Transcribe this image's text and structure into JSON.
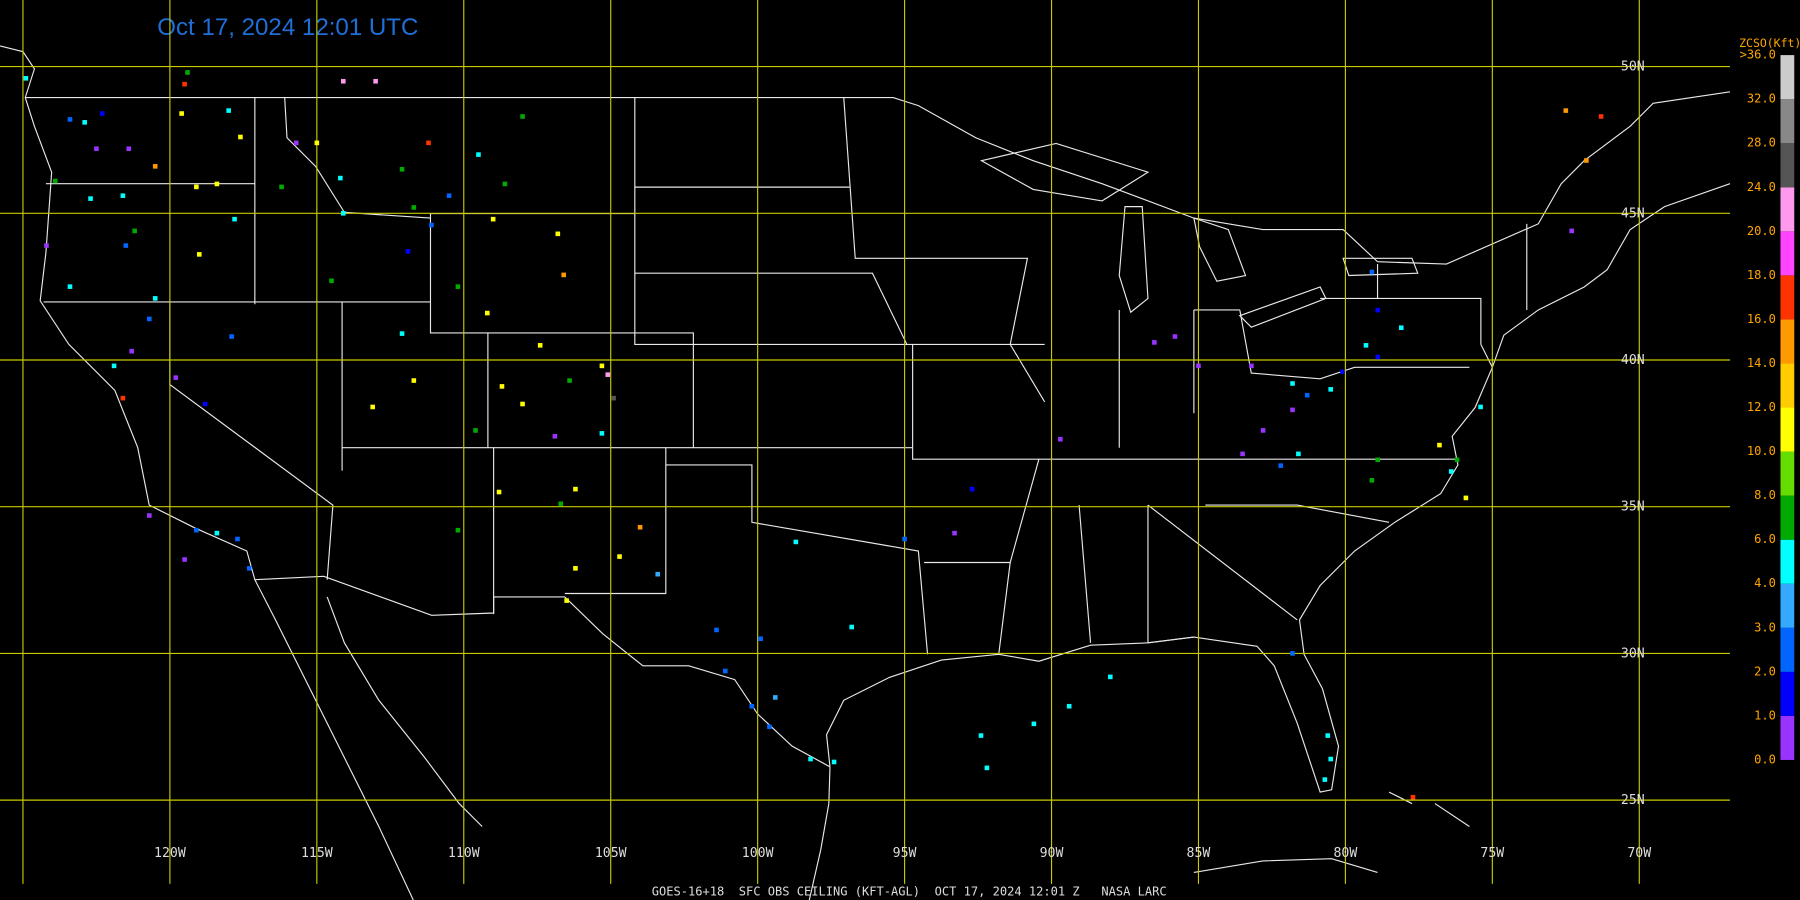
{
  "title": "Oct 17, 2024 12:01 UTC",
  "footer": "GOES-16+18  SFC OBS CEILING (KFT-AGL)  OCT 17, 2024 12:01 Z   NASA LARC",
  "grid": {
    "lon_lines": [
      -125,
      -120,
      -115,
      -110,
      -105,
      -100,
      -95,
      -90,
      -85,
      -80,
      -75,
      -70
    ],
    "lat_lines": [
      50,
      45,
      40,
      35,
      30,
      25
    ],
    "lon_labels": [
      {
        "value": -120,
        "label": "120W"
      },
      {
        "value": -115,
        "label": "115W"
      },
      {
        "value": -110,
        "label": "110W"
      },
      {
        "value": -105,
        "label": "105W"
      },
      {
        "value": -100,
        "label": "100W"
      },
      {
        "value": -95,
        "label": "95W"
      },
      {
        "value": -90,
        "label": "90W"
      },
      {
        "value": -85,
        "label": "85W"
      },
      {
        "value": -80,
        "label": "80W"
      },
      {
        "value": -75,
        "label": "75W"
      },
      {
        "value": -70,
        "label": "70W"
      }
    ],
    "lat_labels": [
      {
        "value": 50,
        "label": "50N"
      },
      {
        "value": 45,
        "label": "45N"
      },
      {
        "value": 40,
        "label": "40N"
      },
      {
        "value": 35,
        "label": "35N"
      },
      {
        "value": 30,
        "label": "30N"
      },
      {
        "value": 25,
        "label": "25N"
      }
    ]
  },
  "legend": {
    "title": "ZCSO(Kft)",
    "levels": [
      {
        "value": 0,
        "label": "0.0"
      },
      {
        "value": 1,
        "label": "1.0"
      },
      {
        "value": 2,
        "label": "2.0"
      },
      {
        "value": 3,
        "label": "3.0"
      },
      {
        "value": 4,
        "label": "4.0"
      },
      {
        "value": 6,
        "label": "6.0"
      },
      {
        "value": 8,
        "label": "8.0"
      },
      {
        "value": 10,
        "label": "10.0"
      },
      {
        "value": 12,
        "label": "12.0"
      },
      {
        "value": 14,
        "label": "14.0"
      },
      {
        "value": 16,
        "label": "16.0"
      },
      {
        "value": 18,
        "label": "18.0"
      },
      {
        "value": 20,
        "label": "20.0"
      },
      {
        "value": 24,
        "label": "24.0"
      },
      {
        "value": 28,
        "label": "28.0"
      },
      {
        "value": 32,
        "label": "32.0"
      },
      {
        "value": 36,
        "label": ">36.0"
      }
    ],
    "colors": [
      "#9933ff",
      "#0000ff",
      "#0066ff",
      "#33aaff",
      "#00ffff",
      "#00aa00",
      "#66dd00",
      "#ffff00",
      "#ffcc00",
      "#ff9900",
      "#ff3300",
      "#ff44ff",
      "#ff99ee",
      "#555555",
      "#888888",
      "#cccccc"
    ]
  },
  "stations": [
    [
      -124.9,
      49.6,
      5
    ],
    [
      -123.4,
      48.2,
      2.5
    ],
    [
      -122.3,
      48.4,
      1.5
    ],
    [
      -122.9,
      48.1,
      5
    ],
    [
      -122.5,
      47.2,
      0.5
    ],
    [
      -123.9,
      46.1,
      7
    ],
    [
      -122.7,
      45.5,
      5
    ],
    [
      -119.5,
      49.4,
      17
    ],
    [
      -119.4,
      49.8,
      7
    ],
    [
      -119.6,
      48.4,
      11
    ],
    [
      -118.0,
      48.5,
      5
    ],
    [
      -117.6,
      47.6,
      11
    ],
    [
      -120.5,
      46.6,
      15
    ],
    [
      -121.4,
      47.2,
      0.5
    ],
    [
      -119.1,
      45.9,
      11
    ],
    [
      -121.6,
      45.6,
      5
    ],
    [
      -118.4,
      46.0,
      11
    ],
    [
      -116.2,
      45.9,
      7
    ],
    [
      -117.8,
      44.8,
      5
    ],
    [
      -121.2,
      44.4,
      7
    ],
    [
      -121.5,
      43.9,
      2.5
    ],
    [
      -119.0,
      43.6,
      11
    ],
    [
      -123.4,
      42.5,
      5
    ],
    [
      -120.5,
      42.1,
      5
    ],
    [
      -124.2,
      43.9,
      0.5
    ],
    [
      -120.7,
      41.4,
      2.5
    ],
    [
      -117.9,
      40.8,
      2.5
    ],
    [
      -121.3,
      40.3,
      0.5
    ],
    [
      -121.9,
      39.8,
      5
    ],
    [
      -121.6,
      38.7,
      17
    ],
    [
      -119.8,
      39.4,
      0.5
    ],
    [
      -118.8,
      38.5,
      1.5
    ],
    [
      -120.7,
      34.7,
      0.5
    ],
    [
      -119.1,
      34.2,
      2.5
    ],
    [
      -118.4,
      34.1,
      5
    ],
    [
      -117.7,
      33.9,
      2.5
    ],
    [
      -117.3,
      32.9,
      2.5
    ],
    [
      -119.5,
      33.2,
      0.5
    ],
    [
      -115.7,
      47.4,
      0.5
    ],
    [
      -114.1,
      49.5,
      22
    ],
    [
      -113.0,
      49.5,
      22
    ],
    [
      -115.0,
      47.4,
      11
    ],
    [
      -114.2,
      46.2,
      5
    ],
    [
      -112.1,
      46.5,
      7
    ],
    [
      -111.2,
      47.4,
      17
    ],
    [
      -109.5,
      47.0,
      5
    ],
    [
      -108.0,
      48.3,
      7
    ],
    [
      -108.6,
      46.0,
      7
    ],
    [
      -110.5,
      45.6,
      2.5
    ],
    [
      -111.7,
      45.2,
      7
    ],
    [
      -114.1,
      45.0,
      5
    ],
    [
      -111.9,
      43.7,
      1.5
    ],
    [
      -111.1,
      44.6,
      2.5
    ],
    [
      -109.0,
      44.8,
      11
    ],
    [
      -106.8,
      44.3,
      11
    ],
    [
      -106.6,
      42.9,
      15
    ],
    [
      -110.2,
      42.5,
      7
    ],
    [
      -109.2,
      41.6,
      11
    ],
    [
      -114.5,
      42.7,
      7
    ],
    [
      -112.1,
      40.9,
      5
    ],
    [
      -113.1,
      38.4,
      11
    ],
    [
      -111.7,
      39.3,
      11
    ],
    [
      -107.4,
      40.5,
      11
    ],
    [
      -108.7,
      39.1,
      11
    ],
    [
      -106.4,
      39.3,
      7
    ],
    [
      -105.3,
      39.8,
      11
    ],
    [
      -104.9,
      38.7,
      26
    ],
    [
      -105.1,
      39.5,
      22
    ],
    [
      -108.0,
      38.5,
      11
    ],
    [
      -109.6,
      37.6,
      7
    ],
    [
      -106.9,
      37.4,
      0.5
    ],
    [
      -105.3,
      37.5,
      5
    ],
    [
      -108.8,
      35.5,
      11
    ],
    [
      -106.7,
      35.1,
      7
    ],
    [
      -106.2,
      35.6,
      11
    ],
    [
      -104.0,
      34.3,
      15
    ],
    [
      -104.7,
      33.3,
      11
    ],
    [
      -106.2,
      32.9,
      11
    ],
    [
      -103.4,
      32.7,
      3.5
    ],
    [
      -106.5,
      31.8,
      11
    ],
    [
      -110.2,
      34.2,
      7
    ],
    [
      -101.4,
      30.8,
      2.5
    ],
    [
      -99.9,
      30.5,
      2.5
    ],
    [
      -96.8,
      30.9,
      5
    ],
    [
      -101.1,
      29.4,
      2.5
    ],
    [
      -100.2,
      28.2,
      2.5
    ],
    [
      -99.4,
      28.5,
      3.5
    ],
    [
      -99.6,
      27.5,
      2.5
    ],
    [
      -98.2,
      26.4,
      5
    ],
    [
      -97.4,
      26.3,
      5
    ],
    [
      -98.7,
      33.8,
      5
    ],
    [
      -95.0,
      33.9,
      2.5
    ],
    [
      -92.7,
      35.6,
      1.5
    ],
    [
      -93.3,
      34.1,
      0.5
    ],
    [
      -92.4,
      27.2,
      5
    ],
    [
      -92.2,
      26.1,
      5
    ],
    [
      -90.6,
      27.6,
      5
    ],
    [
      -89.4,
      28.2,
      5
    ],
    [
      -88.0,
      29.2,
      5
    ],
    [
      -89.7,
      37.3,
      0.5
    ],
    [
      -86.5,
      40.6,
      0.5
    ],
    [
      -85.8,
      40.8,
      0.5
    ],
    [
      -85.0,
      39.8,
      0.5
    ],
    [
      -83.2,
      39.8,
      0.5
    ],
    [
      -81.8,
      39.2,
      5
    ],
    [
      -81.8,
      38.3,
      0.5
    ],
    [
      -81.3,
      38.8,
      2.5
    ],
    [
      -80.5,
      39.0,
      5
    ],
    [
      -80.1,
      39.6,
      1.5
    ],
    [
      -82.8,
      37.6,
      0.5
    ],
    [
      -81.6,
      36.8,
      5
    ],
    [
      -82.2,
      36.4,
      2.5
    ],
    [
      -83.5,
      36.8,
      0.5
    ],
    [
      -78.9,
      41.7,
      1.5
    ],
    [
      -79.1,
      43.0,
      2.5
    ],
    [
      -78.1,
      41.1,
      5
    ],
    [
      -79.3,
      40.5,
      5
    ],
    [
      -78.9,
      40.1,
      1.5
    ],
    [
      -76.2,
      36.6,
      7
    ],
    [
      -76.8,
      37.1,
      11
    ],
    [
      -76.4,
      36.2,
      5
    ],
    [
      -75.9,
      35.3,
      11
    ],
    [
      -75.4,
      38.4,
      5
    ],
    [
      -79.1,
      35.9,
      7
    ],
    [
      -78.9,
      36.6,
      7
    ],
    [
      -81.8,
      30.0,
      2.5
    ],
    [
      -80.6,
      27.2,
      5
    ],
    [
      -80.5,
      26.4,
      5
    ],
    [
      -80.7,
      25.7,
      5
    ],
    [
      -77.7,
      25.1,
      17
    ],
    [
      -72.5,
      48.5,
      15
    ],
    [
      -71.3,
      48.3,
      17
    ],
    [
      -71.8,
      46.8,
      15
    ],
    [
      -72.3,
      44.4,
      0.5
    ]
  ]
}
